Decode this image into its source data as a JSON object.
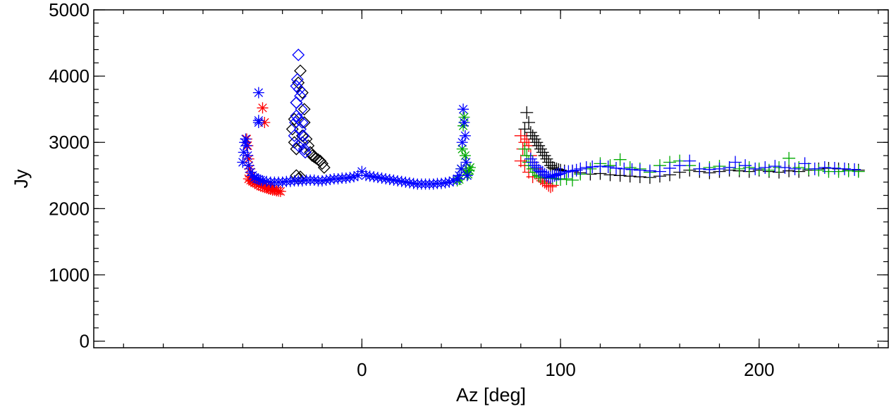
{
  "chart_data": {
    "type": "scatter",
    "title": "",
    "xlabel": "Az [deg]",
    "ylabel": "Jy",
    "xlim": [
      -135,
      265
    ],
    "ylim": [
      -100,
      5000
    ],
    "xticks": [
      0,
      100,
      200
    ],
    "yticks": [
      0,
      1000,
      2000,
      3000,
      4000,
      5000
    ],
    "x_minor_step": 20,
    "y_minor_step": 200,
    "grid": false,
    "legend": "none",
    "series": [
      {
        "color": "#ff0000",
        "marker": "asterisk",
        "x": [
          -58,
          -57.5,
          -57,
          -56.5,
          -56,
          -55,
          -54,
          -53,
          -52,
          -51,
          -50,
          -49,
          -48,
          -47,
          -46,
          -45,
          -44,
          -43,
          -42,
          -41,
          -57,
          -56,
          -55,
          -54,
          -52,
          -50,
          -49,
          -48,
          -47,
          -46
        ],
        "y": [
          3050,
          2950,
          2750,
          2600,
          2480,
          2420,
          2400,
          2380,
          2360,
          2340,
          2330,
          2320,
          2310,
          2300,
          2290,
          2280,
          2280,
          2270,
          2265,
          2260,
          2450,
          2430,
          2410,
          2390,
          2360,
          3520,
          3300,
          2350,
          2330,
          2310
        ]
      },
      {
        "color": "#000000",
        "marker": "diamond",
        "x": [
          -35,
          -34,
          -33,
          -32,
          -31,
          -30,
          -29,
          -28,
          -27,
          -26,
          -25,
          -24,
          -23,
          -22,
          -21,
          -20,
          -19,
          -33,
          -32,
          -31,
          -30,
          -29,
          -34,
          -33
        ],
        "y": [
          3200,
          3350,
          3600,
          3900,
          4080,
          3750,
          3500,
          3050,
          2950,
          2850,
          2800,
          2780,
          2760,
          2740,
          2720,
          2680,
          2620,
          2500,
          2450,
          2480,
          3100,
          3300,
          3000,
          2900
        ]
      },
      {
        "color": "#00aa00",
        "marker": "asterisk",
        "x": [
          48,
          49,
          50,
          50.5,
          51,
          51.5,
          52,
          52.5,
          53,
          53.5,
          54,
          54.5
        ],
        "y": [
          2420,
          2440,
          2600,
          2900,
          3250,
          3380,
          2800,
          2550,
          2500,
          2520,
          2580,
          2620
        ]
      },
      {
        "color": "#0000ff",
        "marker": "asterisk",
        "x": [
          -60,
          -59.5,
          -59,
          -58.5,
          -58,
          -57.5,
          -57,
          -56,
          -55,
          -54,
          -53,
          -52,
          -51,
          -50,
          -48,
          -46,
          -44,
          -42,
          -40,
          -38,
          -36,
          -34,
          -32,
          -30,
          -28,
          -26,
          -24,
          -22,
          -20,
          -18,
          -16,
          -14,
          -12,
          -10,
          -8,
          -6,
          -4,
          -2,
          0,
          2,
          4,
          6,
          8,
          10,
          12,
          14,
          16,
          18,
          20,
          22,
          24,
          26,
          28,
          30,
          32,
          34,
          36,
          38,
          40,
          42,
          44,
          46,
          48,
          49,
          50,
          50.5,
          51,
          51.5,
          52,
          52.5,
          53,
          -52,
          -52,
          -52
        ],
        "y": [
          2700,
          2850,
          3000,
          3050,
          2950,
          2800,
          2650,
          2550,
          2500,
          2470,
          2450,
          2440,
          2430,
          2420,
          2410,
          2400,
          2400,
          2400,
          2400,
          2410,
          2410,
          2420,
          2420,
          2420,
          2430,
          2430,
          2430,
          2420,
          2420,
          2430,
          2440,
          2450,
          2450,
          2460,
          2460,
          2470,
          2480,
          2500,
          2560,
          2500,
          2490,
          2480,
          2470,
          2460,
          2450,
          2440,
          2430,
          2420,
          2410,
          2400,
          2390,
          2380,
          2370,
          2370,
          2370,
          2370,
          2370,
          2380,
          2380,
          2390,
          2400,
          2420,
          2450,
          2500,
          2600,
          3000,
          3500,
          3300,
          3100,
          2700,
          2500,
          3750,
          3330,
          3300
        ]
      },
      {
        "color": "#0000ff",
        "marker": "diamond",
        "x": [
          -34,
          -33.5,
          -33,
          -32.5,
          -32,
          -31.5,
          -31,
          -30.5,
          -30,
          -29.5,
          -29,
          -28.5,
          -33,
          -32,
          -31,
          -30,
          -33,
          -32
        ],
        "y": [
          3100,
          3300,
          3600,
          3950,
          4320,
          3800,
          3700,
          3500,
          3300,
          3100,
          2900,
          2850,
          3400,
          3350,
          3200,
          3000,
          3850,
          2950
        ]
      },
      {
        "color": "#ff0000",
        "marker": "plus",
        "x": [
          80,
          81,
          82,
          83,
          84,
          85,
          86,
          87,
          88,
          89,
          90,
          91,
          92,
          93,
          94,
          95,
          96,
          80,
          82,
          84,
          86,
          88
        ],
        "y": [
          2720,
          2900,
          3000,
          3050,
          2950,
          2800,
          2700,
          2600,
          2550,
          2500,
          2450,
          2420,
          2400,
          2380,
          2350,
          2330,
          2350,
          3100,
          2650,
          2550,
          2480,
          2600
        ]
      },
      {
        "color": "#000000",
        "marker": "plus",
        "x": [
          82,
          83,
          84,
          85,
          86,
          87,
          88,
          89,
          90,
          91,
          92,
          93,
          94,
          95,
          96,
          97,
          98,
          99,
          100,
          102,
          106,
          110,
          115,
          120,
          125,
          130,
          135,
          140,
          145,
          150,
          155,
          160,
          165,
          170,
          175,
          180,
          185,
          190,
          195,
          200,
          205,
          210,
          215,
          220,
          225,
          230,
          235,
          240,
          245,
          250
        ],
        "y": [
          3200,
          3450,
          3300,
          3150,
          3100,
          3050,
          3000,
          2950,
          2900,
          2850,
          2800,
          2750,
          2700,
          2650,
          2620,
          2600,
          2600,
          2590,
          2580,
          2570,
          2560,
          2540,
          2520,
          2530,
          2510,
          2500,
          2490,
          2480,
          2470,
          2490,
          2510,
          2550,
          2580,
          2560,
          2540,
          2560,
          2580,
          2570,
          2560,
          2580,
          2560,
          2550,
          2570,
          2560,
          2580,
          2600,
          2610,
          2600,
          2590,
          2580
        ]
      },
      {
        "color": "#00aa00",
        "marker": "plus",
        "x": [
          82,
          83,
          84,
          85,
          86,
          87,
          88,
          89,
          90,
          92,
          94,
          96,
          98,
          100,
          103,
          106,
          110,
          115,
          120,
          125,
          130,
          135,
          140,
          145,
          150,
          155,
          160,
          165,
          170,
          175,
          180,
          185,
          190,
          195,
          200,
          205,
          210,
          215,
          220,
          225,
          230,
          235,
          240,
          245,
          250
        ],
        "y": [
          2900,
          2800,
          2700,
          2650,
          2600,
          2550,
          2550,
          2500,
          2480,
          2470,
          2460,
          2460,
          2450,
          2440,
          2450,
          2430,
          2520,
          2600,
          2680,
          2650,
          2740,
          2620,
          2600,
          2550,
          2650,
          2700,
          2720,
          2650,
          2600,
          2620,
          2640,
          2620,
          2600,
          2620,
          2600,
          2580,
          2620,
          2760,
          2620,
          2600,
          2580,
          2560,
          2560,
          2570,
          2560
        ]
      },
      {
        "color": "#0000ff",
        "marker": "plus",
        "x": [
          85,
          86,
          87,
          88,
          89,
          90,
          91,
          92,
          93,
          94,
          95,
          96,
          97,
          98,
          99,
          100,
          102,
          104,
          106,
          108,
          110,
          113,
          116,
          120,
          124,
          128,
          132,
          136,
          140,
          145,
          150,
          155,
          160,
          165,
          170,
          175,
          180,
          185,
          188,
          193,
          198,
          203,
          208,
          213,
          218,
          223,
          228,
          233,
          238,
          243,
          248
        ],
        "y": [
          2750,
          2700,
          2650,
          2620,
          2580,
          2560,
          2550,
          2520,
          2500,
          2480,
          2470,
          2490,
          2500,
          2510,
          2520,
          2530,
          2550,
          2560,
          2570,
          2580,
          2600,
          2620,
          2630,
          2640,
          2630,
          2610,
          2600,
          2590,
          2580,
          2570,
          2560,
          2610,
          2650,
          2720,
          2600,
          2590,
          2600,
          2620,
          2700,
          2650,
          2600,
          2620,
          2640,
          2620,
          2600,
          2680,
          2600,
          2620,
          2610,
          2600,
          2590
        ]
      }
    ]
  }
}
